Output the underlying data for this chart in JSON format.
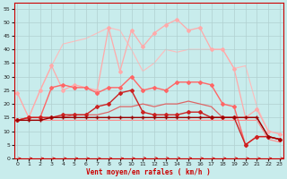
{
  "xlabel": "Vent moyen/en rafales ( km/h )",
  "background_color": "#c8ecec",
  "grid_color": "#b0d0d0",
  "xlim": [
    -0.3,
    23.3
  ],
  "ylim": [
    0,
    57
  ],
  "yticks": [
    0,
    5,
    10,
    15,
    20,
    25,
    30,
    35,
    40,
    45,
    50,
    55
  ],
  "xticks": [
    0,
    1,
    2,
    3,
    4,
    5,
    6,
    7,
    8,
    9,
    10,
    11,
    12,
    13,
    14,
    15,
    16,
    17,
    18,
    19,
    20,
    21,
    22,
    23
  ],
  "series": [
    {
      "x": [
        0,
        1,
        2,
        3,
        4,
        5,
        6,
        7,
        8,
        9,
        10,
        11,
        12,
        13,
        14,
        15,
        16,
        17,
        18,
        19,
        20,
        21,
        22,
        23
      ],
      "y": [
        24,
        15,
        25,
        34,
        42,
        43,
        44,
        46,
        48,
        47,
        40,
        32,
        35,
        40,
        39,
        40,
        40,
        40,
        40,
        33,
        34,
        19,
        10,
        9
      ],
      "color": "#ffbbbb",
      "linewidth": 0.8,
      "marker": null,
      "zorder": 1
    },
    {
      "x": [
        0,
        1,
        2,
        3,
        4,
        5,
        6,
        7,
        8,
        9,
        10,
        11,
        12,
        13,
        14,
        15,
        16,
        17,
        18,
        19,
        20,
        21,
        22,
        23
      ],
      "y": [
        24,
        15,
        25,
        34,
        25,
        27,
        26,
        25,
        48,
        32,
        47,
        41,
        46,
        49,
        51,
        47,
        48,
        40,
        40,
        33,
        15,
        18,
        10,
        9
      ],
      "color": "#ffaaaa",
      "linewidth": 0.9,
      "marker": "D",
      "markersize": 2.0,
      "zorder": 2
    },
    {
      "x": [
        0,
        1,
        2,
        3,
        4,
        5,
        6,
        7,
        8,
        9,
        10,
        11,
        12,
        13,
        14,
        15,
        16,
        17,
        18,
        19,
        20,
        21,
        22,
        23
      ],
      "y": [
        14,
        15,
        15,
        26,
        27,
        26,
        26,
        24,
        26,
        26,
        30,
        25,
        26,
        25,
        28,
        28,
        28,
        27,
        20,
        19,
        5,
        8,
        8,
        7
      ],
      "color": "#ff6666",
      "linewidth": 1.0,
      "marker": "D",
      "markersize": 2.0,
      "zorder": 3
    },
    {
      "x": [
        0,
        1,
        2,
        3,
        4,
        5,
        6,
        7,
        8,
        9,
        10,
        11,
        12,
        13,
        14,
        15,
        16,
        17,
        18,
        19,
        20,
        21,
        22,
        23
      ],
      "y": [
        14,
        15,
        15,
        15,
        15,
        16,
        16,
        16,
        17,
        19,
        19,
        20,
        19,
        20,
        20,
        21,
        20,
        19,
        15,
        15,
        15,
        15,
        8,
        7
      ],
      "color": "#dd6666",
      "linewidth": 0.9,
      "marker": null,
      "zorder": 2
    },
    {
      "x": [
        0,
        1,
        2,
        3,
        4,
        5,
        6,
        7,
        8,
        9,
        10,
        11,
        12,
        13,
        14,
        15,
        16,
        17,
        18,
        19,
        20,
        21,
        22,
        23
      ],
      "y": [
        14,
        14,
        14,
        14,
        14,
        14,
        14,
        14,
        14,
        14,
        14,
        14,
        14,
        14,
        14,
        14,
        14,
        14,
        14,
        14,
        14,
        14,
        7,
        6
      ],
      "color": "#ff8888",
      "linewidth": 0.8,
      "marker": null,
      "zorder": 1
    },
    {
      "x": [
        0,
        1,
        2,
        3,
        4,
        5,
        6,
        7,
        8,
        9,
        10,
        11,
        12,
        13,
        14,
        15,
        16,
        17,
        18,
        19,
        20,
        21,
        22,
        23
      ],
      "y": [
        14,
        15,
        15,
        15,
        16,
        16,
        16,
        19,
        20,
        24,
        25,
        17,
        16,
        16,
        16,
        17,
        17,
        15,
        15,
        15,
        5,
        8,
        8,
        7
      ],
      "color": "#cc2222",
      "linewidth": 1.0,
      "marker": "D",
      "markersize": 2.0,
      "zorder": 4
    },
    {
      "x": [
        0,
        1,
        2,
        3,
        4,
        5,
        6,
        7,
        8,
        9,
        10,
        11,
        12,
        13,
        14,
        15,
        16,
        17,
        18,
        19,
        20,
        21,
        22,
        23
      ],
      "y": [
        14,
        14,
        14,
        15,
        15,
        15,
        15,
        15,
        15,
        15,
        15,
        15,
        15,
        15,
        15,
        15,
        15,
        15,
        15,
        15,
        15,
        15,
        8,
        7
      ],
      "color": "#990000",
      "linewidth": 1.0,
      "marker": "+",
      "markersize": 2.5,
      "zorder": 5
    }
  ],
  "wind_arrow_angles": [
    0,
    0,
    0,
    0,
    0,
    0,
    0,
    0,
    0,
    0,
    10,
    20,
    20,
    20,
    20,
    15,
    10,
    5,
    5,
    10,
    5,
    0,
    0,
    0
  ]
}
